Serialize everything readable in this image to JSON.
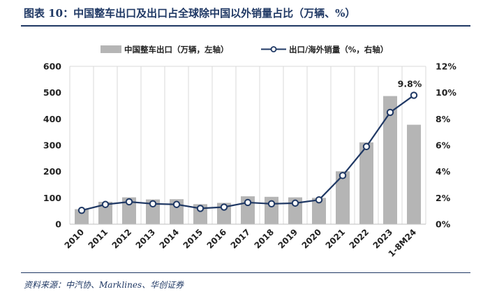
{
  "header": {
    "title": "图表 10：中国整车出口及出口占全球除中国以外销量占比（万辆、%）"
  },
  "footer": {
    "source": "资料来源：中汽协、Marklines、华创证券"
  },
  "colors": {
    "bar": "#b5b5b5",
    "line": "#1f3864",
    "marker_fill": "#ffffff",
    "title": "#1f3864"
  },
  "chart_data": {
    "type": "bar",
    "categories": [
      "2010",
      "2011",
      "2012",
      "2013",
      "2014",
      "2015",
      "2016",
      "2017",
      "2018",
      "2019",
      "2020",
      "2021",
      "2022",
      "2023",
      "1-8M24"
    ],
    "series": [
      {
        "name": "中国整车出口（万辆，左轴）",
        "type": "bar",
        "axis": "left",
        "values": [
          57,
          85,
          102,
          94,
          95,
          76,
          81,
          106,
          104,
          102,
          100,
          201,
          311,
          487,
          378
        ]
      },
      {
        "name": "出口/海外销量（%，右轴）",
        "type": "line",
        "axis": "right",
        "values": [
          1.05,
          1.5,
          1.7,
          1.55,
          1.5,
          1.2,
          1.3,
          1.65,
          1.55,
          1.6,
          1.85,
          3.7,
          5.9,
          8.5,
          9.8
        ]
      }
    ],
    "annotations": [
      {
        "category": "1-8M24",
        "series": 1,
        "text": "9.8%"
      }
    ],
    "y_left": {
      "min": 0,
      "max": 600,
      "ticks": [
        "0",
        "100",
        "200",
        "300",
        "400",
        "500",
        "600"
      ]
    },
    "y_right": {
      "min": 0,
      "max": 12,
      "ticks": [
        "0%",
        "2%",
        "4%",
        "6%",
        "8%",
        "10%",
        "12%"
      ]
    },
    "grid": "vertical",
    "legend": "top-center"
  }
}
